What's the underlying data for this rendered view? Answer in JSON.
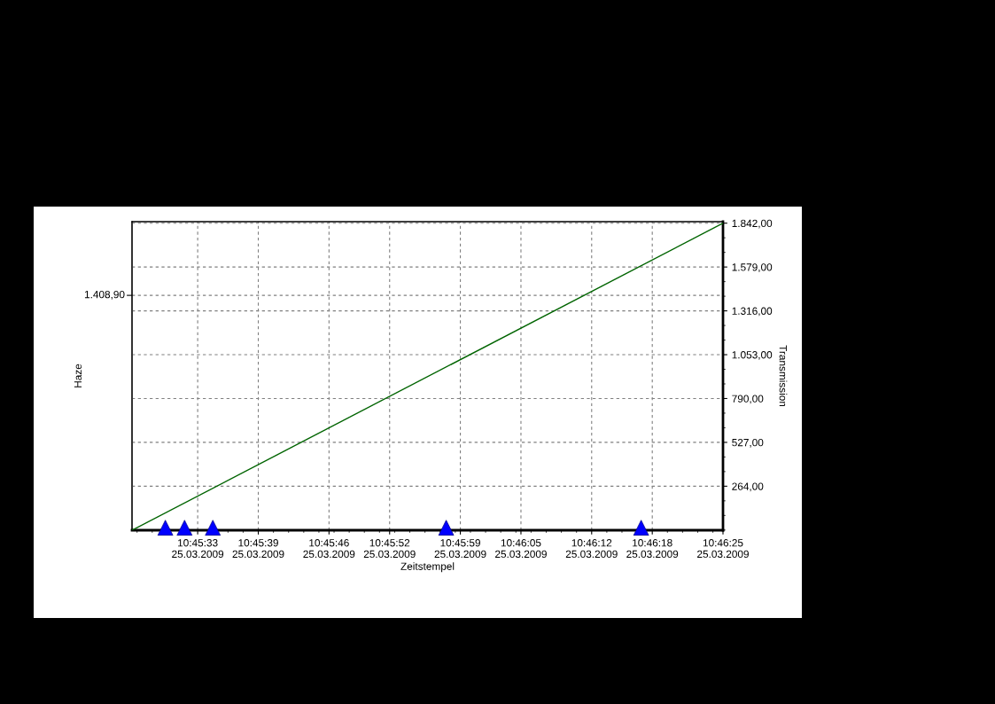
{
  "chart_data": {
    "type": "line",
    "xlabel": "Zeitstempel",
    "annotations": [
      "Haze"
    ],
    "y2label": "Transmission",
    "xlim": [
      "2009-03-25T10:45:26.5",
      "2009-03-25T10:46:25"
    ],
    "xticks": [
      {
        "value": "2009-03-25T10:45:33",
        "label": "10:45:33\n25.03.2009"
      },
      {
        "value": "2009-03-25T10:45:39",
        "label": "10:45:39\n25.03.2009"
      },
      {
        "value": "2009-03-25T10:45:46",
        "label": "10:45:46\n25.03.2009"
      },
      {
        "value": "2009-03-25T10:45:52",
        "label": "10:45:52\n25.03.2009"
      },
      {
        "value": "2009-03-25T10:45:59",
        "label": "10:45:59\n25.03.2009"
      },
      {
        "value": "2009-03-25T10:46:05",
        "label": "10:46:05\n25.03.2009"
      },
      {
        "value": "2009-03-25T10:46:12",
        "label": "10:46:12\n25.03.2009"
      },
      {
        "value": "2009-03-25T10:46:18",
        "label": "10:46:18\n25.03.2009"
      },
      {
        "value": "2009-03-25T10:46:25",
        "label": "10:46:25\n25.03.2009"
      }
    ],
    "y2lim": [
      0,
      1851
    ],
    "y2ticks": [
      {
        "value": 264,
        "label": "264,00"
      },
      {
        "value": 527,
        "label": "527,00"
      },
      {
        "value": 790,
        "label": "790,00"
      },
      {
        "value": 1053,
        "label": "1.053,00"
      },
      {
        "value": 1316,
        "label": "1.316,00"
      },
      {
        "value": 1579,
        "label": "1.579,00"
      },
      {
        "value": 1842,
        "label": "1.842,00"
      }
    ],
    "ref_lines": [
      {
        "axis": "y2",
        "value": 1408.9,
        "label": "1.408,90",
        "color": "#808080",
        "line_style": "dashed"
      }
    ],
    "grid": true,
    "series": [
      {
        "type": "scatter",
        "axis": "y2",
        "color": "#0000ff",
        "marker": "triangle",
        "x": [
          "2009-03-25T10:45:29.8",
          "2009-03-25T10:45:31.7",
          "2009-03-25T10:45:34.5",
          "2009-03-25T10:45:57.6",
          "2009-03-25T10:46:16.9"
        ],
        "values": [
          15,
          15,
          15,
          15,
          15
        ]
      },
      {
        "axis": "y2",
        "color": "#006400",
        "x": [
          "2009-03-25T10:45:26.5",
          "2009-03-25T10:46:25"
        ],
        "values": [
          0,
          1842
        ]
      }
    ]
  }
}
